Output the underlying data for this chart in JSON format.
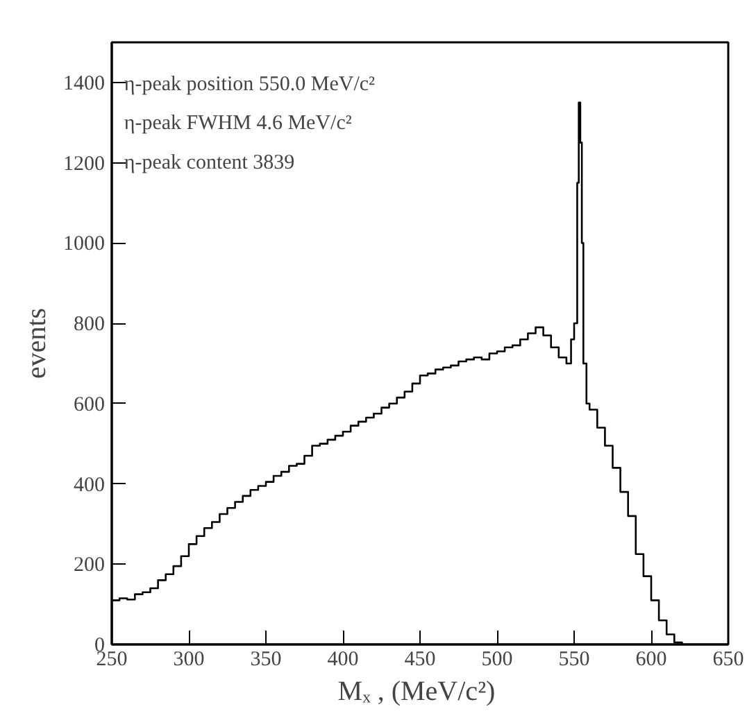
{
  "chart_data": {
    "type": "histogram",
    "xlabel": "Mₓ ,  (MeV/c²)",
    "ylabel": "events",
    "bins": [
      250,
      255,
      260,
      265,
      270,
      275,
      280,
      285,
      290,
      295,
      300,
      305,
      310,
      315,
      320,
      325,
      330,
      335,
      340,
      345,
      350,
      355,
      360,
      365,
      370,
      375,
      380,
      385,
      390,
      395,
      400,
      405,
      410,
      415,
      420,
      425,
      430,
      435,
      440,
      445,
      450,
      455,
      460,
      465,
      470,
      475,
      480,
      485,
      490,
      495,
      500,
      505,
      510,
      515,
      520,
      525,
      530,
      535,
      540,
      545,
      548,
      550,
      552,
      553,
      554,
      555,
      556,
      558,
      560,
      565,
      570,
      575,
      580,
      585,
      590,
      595,
      600,
      605,
      610,
      615,
      620
    ],
    "values": [
      110,
      115,
      112,
      125,
      130,
      140,
      160,
      175,
      195,
      220,
      250,
      270,
      290,
      305,
      325,
      340,
      355,
      370,
      385,
      395,
      405,
      420,
      430,
      445,
      450,
      470,
      495,
      500,
      510,
      520,
      530,
      545,
      555,
      565,
      575,
      590,
      600,
      615,
      630,
      650,
      670,
      675,
      685,
      690,
      695,
      705,
      710,
      715,
      710,
      725,
      730,
      740,
      745,
      760,
      775,
      790,
      770,
      740,
      715,
      700,
      760,
      800,
      1150,
      1350,
      1250,
      1000,
      700,
      600,
      585,
      540,
      495,
      440,
      380,
      320,
      225,
      170,
      110,
      60,
      25,
      5
    ],
    "color": "#000000",
    "xlim": [
      250,
      650
    ],
    "ylim": [
      0,
      1500
    ],
    "xticks": [
      250,
      300,
      350,
      400,
      450,
      500,
      550,
      600,
      650
    ],
    "yticks": [
      0,
      200,
      400,
      600,
      800,
      1000,
      1200,
      1400
    ],
    "grid": false,
    "annotations": [
      "η-peak position  550.0 MeV/c²",
      "η-peak FWHM       4.6 MeV/c²",
      "η-peak content   3839"
    ]
  }
}
